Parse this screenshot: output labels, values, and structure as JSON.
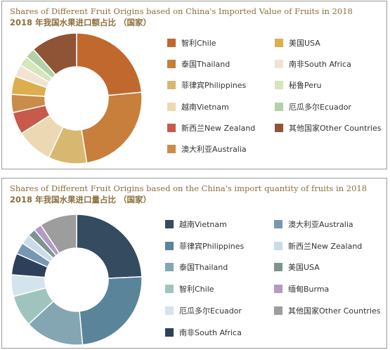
{
  "chart_data": [
    {
      "type": "pie",
      "donut": true,
      "title": "Shares of Different Fruit Origins based on China's Imported Value of Fruits in 2018",
      "subtitle": "2018 年我国水果进口额占比 （国家）",
      "legend_position": "right",
      "slices": [
        {
          "label": "智利Chile",
          "value": 23.5,
          "color": "#c0682e"
        },
        {
          "label": "泰国Thailand",
          "value": 24.0,
          "color": "#c77f3b"
        },
        {
          "label": "菲律宾Philippines",
          "value": 9.5,
          "color": "#d8b870"
        },
        {
          "label": "越南Vietnam",
          "value": 9.0,
          "color": "#ecd9b3"
        },
        {
          "label": "新西兰New Zealand",
          "value": 5.5,
          "color": "#c85a4c"
        },
        {
          "label": "澳大利亚Australia",
          "value": 4.5,
          "color": "#c98d49"
        },
        {
          "label": "美国USA",
          "value": 4.5,
          "color": "#dcae4d"
        },
        {
          "label": "南非South Africa",
          "value": 3.0,
          "color": "#f2e4d3"
        },
        {
          "label": "秘鲁Peru",
          "value": 2.5,
          "color": "#d4e6bb"
        },
        {
          "label": "厄瓜多尔Ecuador",
          "value": 2.5,
          "color": "#b2d1a8"
        },
        {
          "label": "其他国家Other Countries",
          "value": 11.5,
          "color": "#8f5435"
        }
      ],
      "legend_order": [
        "智利Chile",
        "美国USA",
        "泰国Thailand",
        "南非South Africa",
        "菲律宾Philippines",
        "秘鲁Peru",
        "越南Vietnam",
        "厄瓜多尔Ecuador",
        "新西兰New Zealand",
        "其他国家Other Countries",
        "澳大利亚Australia"
      ]
    },
    {
      "type": "pie",
      "donut": true,
      "title": "Shares of Different Fruit Origins based on the China's import quantity of fruits in 2018",
      "subtitle": "2018 年我国水果进口量占比 （国家）",
      "legend_position": "right",
      "slices": [
        {
          "label": "越南Vietnam",
          "value": 25.0,
          "color": "#344b60"
        },
        {
          "label": "菲律宾Philippines",
          "value": 25.0,
          "color": "#5a8499"
        },
        {
          "label": "泰国Thailand",
          "value": 15.0,
          "color": "#84a6b2"
        },
        {
          "label": "智利Chile",
          "value": 8.0,
          "color": "#9fc4be"
        },
        {
          "label": "厄瓜多尔Ecuador",
          "value": 5.5,
          "color": "#d3e4ec"
        },
        {
          "label": "南非South Africa",
          "value": 5.5,
          "color": "#2d405b"
        },
        {
          "label": "澳大利亚Australia",
          "value": 3.0,
          "color": "#7897b3"
        },
        {
          "label": "新西兰New Zealand",
          "value": 2.5,
          "color": "#c9dce8"
        },
        {
          "label": "美国USA",
          "value": 2.0,
          "color": "#7c958e"
        },
        {
          "label": "缅甸Burma",
          "value": 2.0,
          "color": "#b39bc5"
        },
        {
          "label": "其他国家Other Countries",
          "value": 9.5,
          "color": "#9d9d9d"
        }
      ],
      "legend_order": [
        "越南Vietnam",
        "澳大利亚Australia",
        "菲律宾Philippines",
        "新西兰New Zealand",
        "泰国Thailand",
        "美国USA",
        "智利Chile",
        "缅甸Burma",
        "厄瓜多尔Ecuador",
        "其他国家Other Countries",
        "南非South Africa"
      ]
    }
  ]
}
